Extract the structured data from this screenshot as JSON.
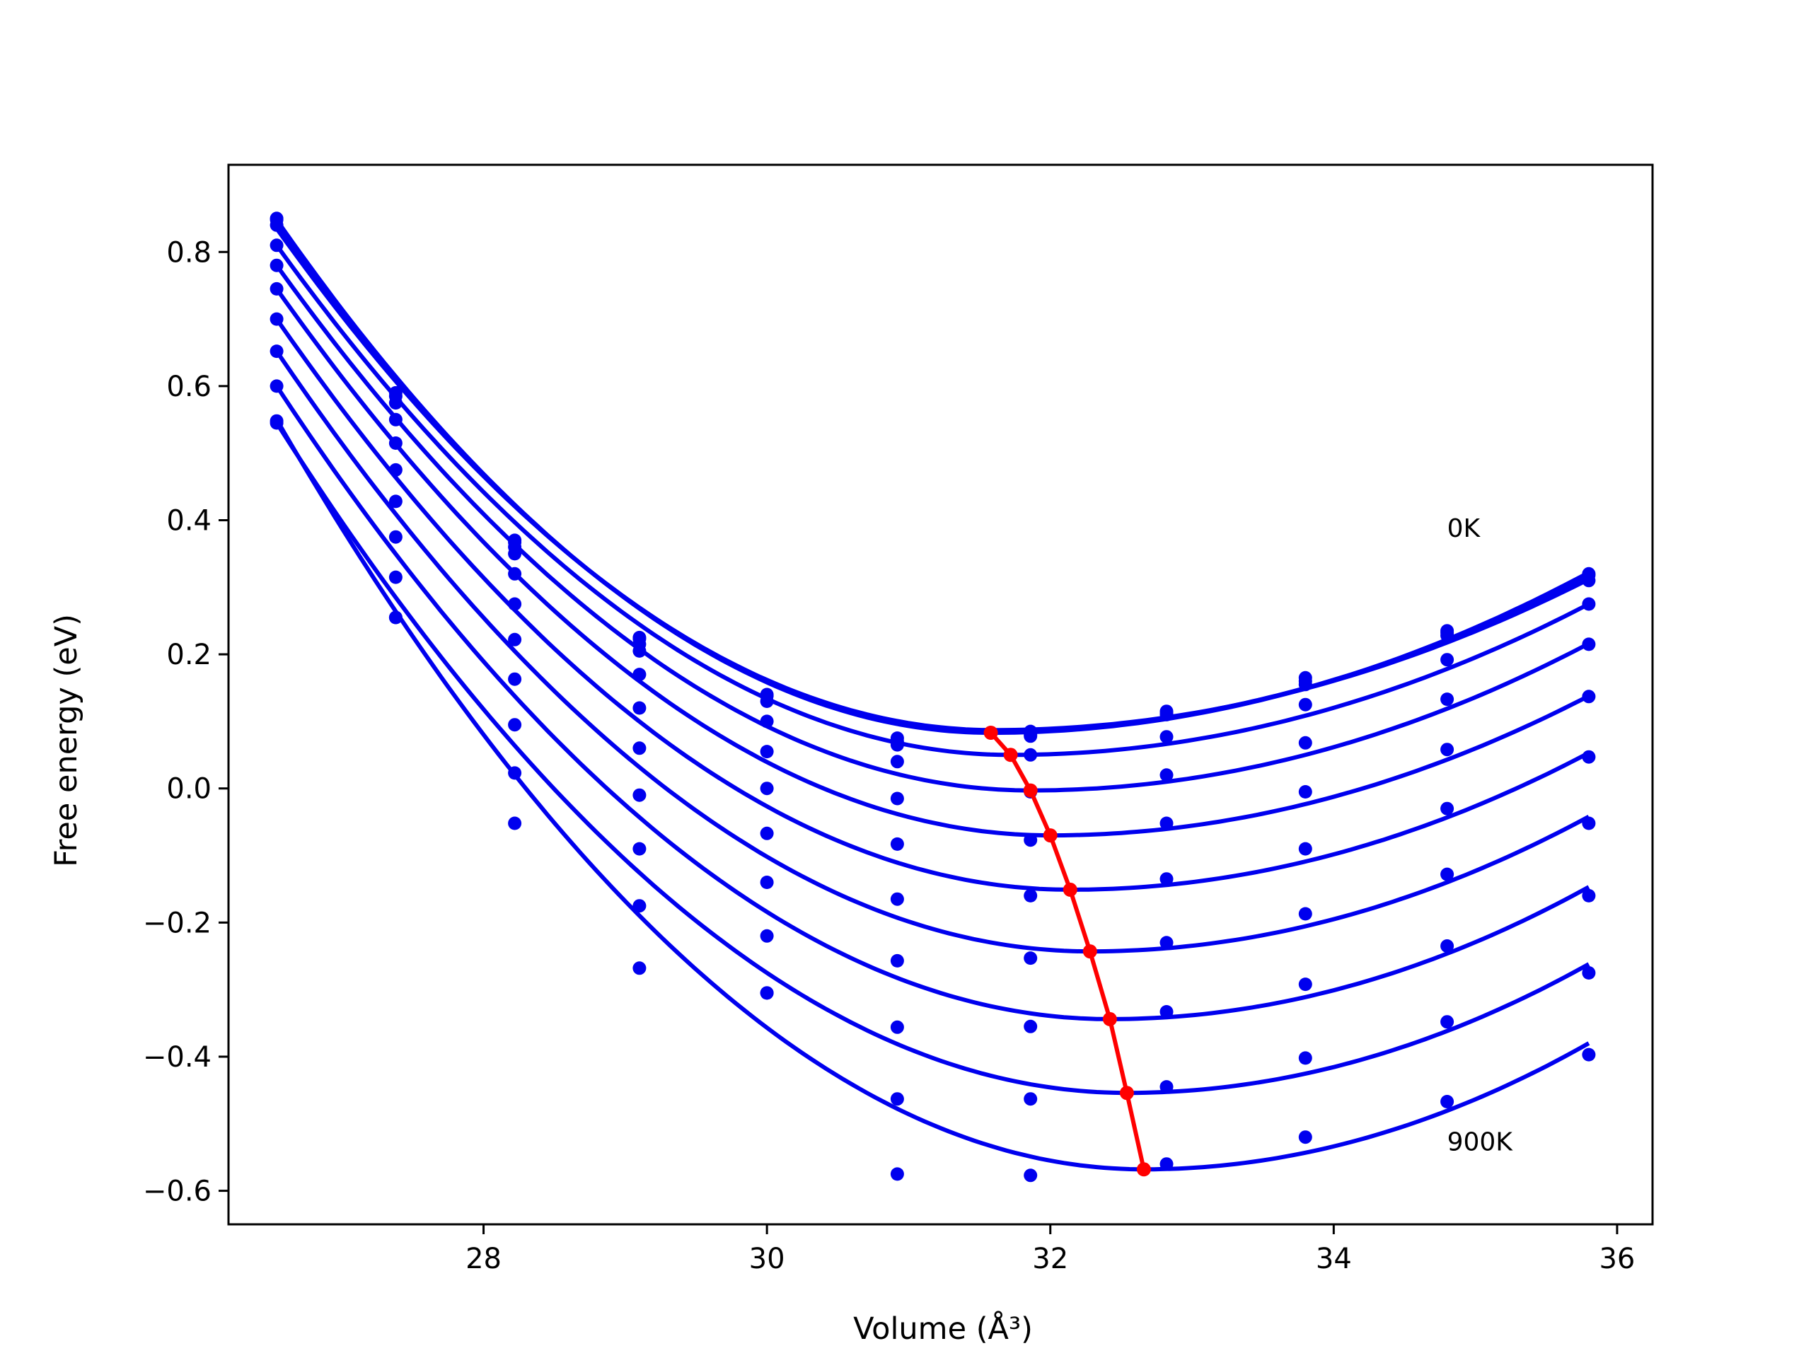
{
  "chart_data": {
    "type": "scatter",
    "xlabel": "Volume (Å³)",
    "ylabel": "Free energy (eV)",
    "xlim": [
      26.2,
      36.25
    ],
    "ylim": [
      -0.65,
      0.93
    ],
    "xticks": [
      28,
      30,
      32,
      34,
      36
    ],
    "yticks": [
      -0.6,
      -0.4,
      -0.2,
      0.0,
      0.2,
      0.4,
      0.6,
      0.8
    ],
    "ytick_labels": [
      "−0.6",
      "−0.4",
      "−0.2",
      "0.0",
      "0.2",
      "0.4",
      "0.6",
      "0.8"
    ],
    "grid": false,
    "annotations": [
      {
        "text": "0K",
        "x": 34.8,
        "y": 0.375
      },
      {
        "text": "900K",
        "x": 34.8,
        "y": -0.54
      }
    ],
    "x_points": [
      26.54,
      27.38,
      28.22,
      29.1,
      30.0,
      30.92,
      31.86,
      32.82,
      33.8,
      34.8,
      35.8
    ],
    "series": [
      {
        "values": [
          0.85,
          0.59,
          0.37,
          0.225,
          0.14,
          0.075,
          0.085,
          0.115,
          0.165,
          0.235,
          0.32
        ],
        "fit": {
          "min_x": 31.58,
          "min_y": 0.083,
          "left_y": 0.848,
          "right_y": 0.322
        }
      },
      {
        "values": [
          0.848,
          0.585,
          0.367,
          0.223,
          0.138,
          0.07,
          0.08,
          0.112,
          0.16,
          0.232,
          0.318
        ],
        "fit": {
          "min_x": 31.58,
          "min_y": 0.085,
          "left_y": 0.843,
          "right_y": 0.319
        }
      },
      {
        "values": [
          0.84,
          0.575,
          0.36,
          0.215,
          0.13,
          0.065,
          0.078,
          0.11,
          0.155,
          0.228,
          0.31
        ],
        "fit": {
          "min_x": 31.6,
          "min_y": 0.087,
          "left_y": 0.835,
          "right_y": 0.312
        }
      },
      {
        "values": [
          0.81,
          0.55,
          0.35,
          0.205,
          0.1,
          0.04,
          0.05,
          0.077,
          0.125,
          0.192,
          0.275
        ],
        "fit": {
          "min_x": 31.72,
          "min_y": 0.05,
          "left_y": 0.81,
          "right_y": 0.275
        }
      },
      {
        "values": [
          0.78,
          0.515,
          0.32,
          0.17,
          0.055,
          -0.015,
          -0.005,
          0.02,
          0.068,
          0.133,
          0.215
        ],
        "fit": {
          "min_x": 31.86,
          "min_y": -0.003,
          "left_y": 0.78,
          "right_y": 0.216
        }
      },
      {
        "values": [
          0.745,
          0.475,
          0.275,
          0.12,
          0.0,
          -0.083,
          -0.077,
          -0.052,
          -0.005,
          0.058,
          0.137
        ],
        "fit": {
          "min_x": 32.0,
          "min_y": -0.07,
          "left_y": 0.745,
          "right_y": 0.138
        }
      },
      {
        "values": [
          0.7,
          0.428,
          0.222,
          0.06,
          -0.067,
          -0.165,
          -0.16,
          -0.135,
          -0.09,
          -0.03,
          0.047
        ],
        "fit": {
          "min_x": 32.14,
          "min_y": -0.151,
          "left_y": 0.7,
          "right_y": 0.053
        }
      },
      {
        "values": [
          0.652,
          0.375,
          0.163,
          -0.01,
          -0.14,
          -0.257,
          -0.253,
          -0.23,
          -0.187,
          -0.128,
          -0.052
        ],
        "fit": {
          "min_x": 32.28,
          "min_y": -0.243,
          "left_y": 0.652,
          "right_y": -0.042
        }
      },
      {
        "values": [
          0.6,
          0.315,
          0.095,
          -0.09,
          -0.22,
          -0.356,
          -0.355,
          -0.333,
          -0.292,
          -0.235,
          -0.16
        ],
        "fit": {
          "min_x": 32.42,
          "min_y": -0.344,
          "left_y": 0.6,
          "right_y": -0.147
        }
      },
      {
        "values": [
          0.545,
          0.255,
          0.023,
          -0.175,
          -0.305,
          -0.463,
          -0.463,
          -0.445,
          -0.402,
          -0.348,
          -0.275
        ],
        "fit": {
          "min_x": 32.54,
          "min_y": -0.454,
          "left_y": 0.545,
          "right_y": -0.262
        }
      },
      {
        "values": [
          0.548,
          0.255,
          -0.052,
          -0.268,
          -0.305,
          -0.575,
          -0.577,
          -0.56,
          -0.52,
          -0.467,
          -0.397
        ],
        "fit": {
          "min_x": 32.66,
          "min_y": -0.568,
          "left_y": 0.55,
          "right_y": -0.38
        }
      }
    ],
    "minima_line": {
      "color": "#ff0000",
      "x": [
        31.58,
        31.72,
        31.86,
        32.0,
        32.14,
        32.28,
        32.42,
        32.54,
        32.66
      ],
      "y": [
        0.083,
        0.05,
        -0.003,
        -0.07,
        -0.151,
        -0.243,
        -0.344,
        -0.454,
        -0.568
      ]
    },
    "colors": {
      "series": "#0000ee",
      "minima": "#ff0000"
    }
  }
}
